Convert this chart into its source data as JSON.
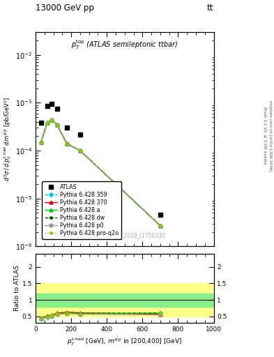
{
  "title_left": "13000 GeV pp",
  "title_right": "tt",
  "panel_label": "$p_T^{\\mathrm{top}}$ (ATLAS semileptonic ttbar)",
  "xlabel": "$p_T^{t,\\mathrm{had}}$ [GeV], $m^{t\\bar{t}|t}$ in [200,400] [GeV]",
  "ylabel_main": "$d^2\\sigma\\,/\\,d\\,p_T^{t,\\mathrm{had}}\\,d\\,m^{t\\bar{t}|t}$ [pb/GeV$^2$]",
  "ylabel_ratio": "Ratio to ATLAS",
  "watermark": "ATLAS_2019_I1750330",
  "right_label1": "Rivet 3.1.10, ≥ 3.5M events",
  "right_label2": "mcplots.cern.ch [arXiv:1306.3436]",
  "atlas_x": [
    30,
    65,
    90,
    120,
    175,
    250,
    700
  ],
  "atlas_y": [
    0.00038,
    0.00085,
    0.00095,
    0.00075,
    0.0003,
    0.00022,
    4.5e-06
  ],
  "mc_x": [
    30,
    65,
    90,
    120,
    175,
    250,
    700
  ],
  "py359_y": [
    0.00015,
    0.00038,
    0.00044,
    0.00035,
    0.00014,
    0.0001,
    2.7e-06
  ],
  "py370_y": [
    0.00015,
    0.00038,
    0.00044,
    0.00035,
    0.00014,
    0.0001,
    2.7e-06
  ],
  "pya_y": [
    0.00015,
    0.00038,
    0.00044,
    0.00035,
    0.00014,
    0.0001,
    2.7e-06
  ],
  "pydw_y": [
    0.00015,
    0.00038,
    0.00044,
    0.00035,
    0.00014,
    0.0001,
    2.7e-06
  ],
  "pyp0_y": [
    0.00015,
    0.00038,
    0.00044,
    0.00035,
    0.00014,
    0.0001,
    2.7e-06
  ],
  "pyproq2o_y": [
    0.00015,
    0.00038,
    0.00044,
    0.00035,
    0.00014,
    0.0001,
    2.7e-06
  ],
  "ratio_x": [
    30,
    65,
    90,
    120,
    175,
    250,
    700
  ],
  "ratio_py359": [
    0.44,
    0.49,
    0.52,
    0.58,
    0.6,
    0.59,
    0.6
  ],
  "ratio_py370": [
    0.46,
    0.51,
    0.54,
    0.6,
    0.63,
    0.61,
    0.57
  ],
  "ratio_pya": [
    0.44,
    0.49,
    0.52,
    0.58,
    0.6,
    0.59,
    0.6
  ],
  "ratio_pydw": [
    0.44,
    0.49,
    0.52,
    0.58,
    0.6,
    0.59,
    0.6
  ],
  "ratio_pyp0": [
    0.43,
    0.48,
    0.51,
    0.57,
    0.59,
    0.57,
    0.55
  ],
  "ratio_pyproq2o": [
    0.44,
    0.49,
    0.52,
    0.58,
    0.6,
    0.59,
    0.6
  ],
  "band_yellow_lo": 0.5,
  "band_yellow_hi": 1.5,
  "band_green_lo": 0.8,
  "band_green_hi": 1.2,
  "color_py359": "#00CCCC",
  "color_py370": "#DD0000",
  "color_pya": "#00CC00",
  "color_pydw": "#005500",
  "color_pyp0": "#999999",
  "color_pyproq2o": "#88CC00",
  "ylim_main": [
    1e-06,
    0.03
  ],
  "xlim": [
    0,
    1000
  ],
  "ratio_ylim": [
    0.3,
    2.4
  ],
  "ratio_yticks": [
    0.5,
    1.0,
    1.5,
    2.0
  ]
}
